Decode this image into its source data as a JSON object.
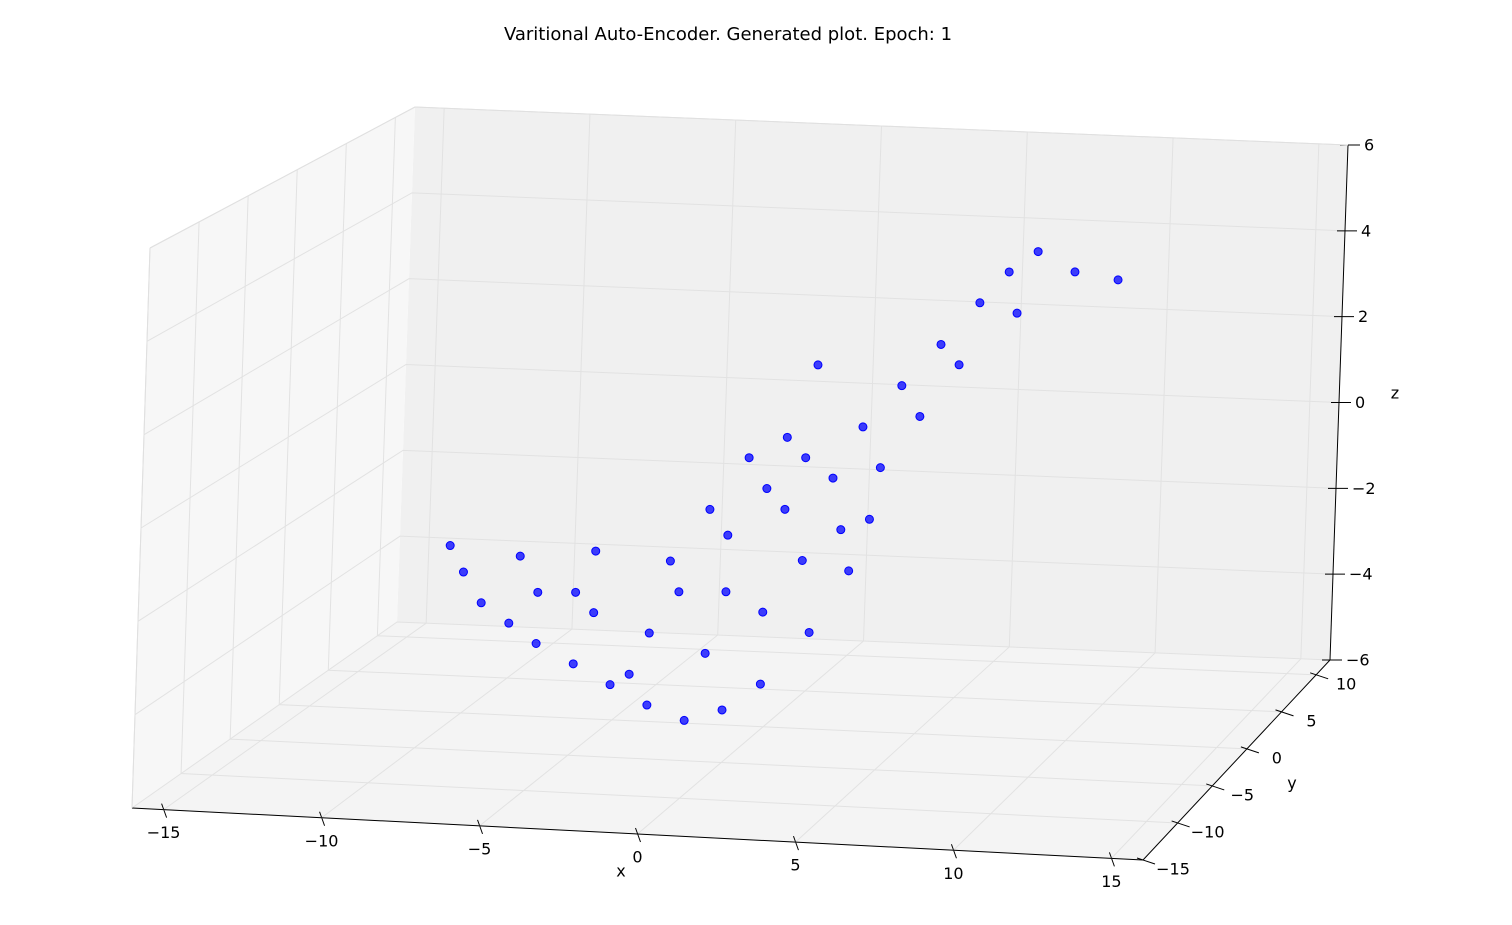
{
  "chart_data": {
    "type": "scatter3d",
    "title": "Varitional Auto-Encoder. Generated plot. Epoch: 1",
    "xlabel": "x",
    "ylabel": "y",
    "zlabel": "z",
    "color": "#0000ff",
    "grid": true,
    "xlim": [
      -16,
      16
    ],
    "ylim": [
      -15,
      12
    ],
    "zlim": [
      -6,
      6
    ],
    "xticks": [
      {
        "value": -15,
        "label": "−15"
      },
      {
        "value": -10,
        "label": "−10"
      },
      {
        "value": -5,
        "label": "−5"
      },
      0,
      5,
      10,
      15
    ],
    "yticks": [
      {
        "value": -15,
        "label": "−15"
      },
      {
        "value": -10,
        "label": "−10"
      },
      {
        "value": -5,
        "label": "−5"
      },
      0,
      5,
      10
    ],
    "zticks": [
      {
        "value": -6,
        "label": "−6"
      },
      {
        "value": -4,
        "label": "−4"
      },
      {
        "value": -2,
        "label": "−2"
      },
      0,
      2,
      4,
      6
    ],
    "x": [
      -9.05,
      -8.59,
      -7.98,
      -7.06,
      -6.15,
      -4.92,
      -3.7,
      -2.48,
      -1.25,
      -0.03,
      1.19,
      2.72,
      3.94,
      4.56,
      -6.76,
      -4.31,
      -1.87,
      -0.03,
      1.19,
      2.42,
      4.25,
      5.47,
      6.7,
      7.92,
      8.84,
      9.76,
      10.98,
      12.39,
      9.14,
      7.31,
      6.09,
      4.86,
      3.64,
      1.8,
      0.58,
      2.72,
      -4.31,
      -2.48,
      -0.64,
      1.19,
      -0.03,
      2.42,
      1.8,
      3.33,
      -1.56,
      -3.09,
      -6.15,
      -0.64,
      -4.92
    ],
    "y": [
      -5,
      -5,
      -5,
      -5,
      -5,
      -5,
      -5,
      -5,
      -5,
      -5,
      -5,
      -5,
      -5,
      -5,
      -5,
      -5,
      -5,
      -5,
      -5,
      -5,
      -5,
      -5,
      -5,
      -5,
      -5,
      -5,
      -5,
      -5,
      -5,
      -5,
      -5,
      -5,
      -5,
      -5,
      -5,
      -5,
      -5,
      -5,
      -5,
      -5,
      -5,
      -5,
      -5,
      -5,
      -5,
      -5,
      -5,
      -5,
      -5
    ],
    "z": [
      -1.5,
      -2.07,
      -2.73,
      -3.15,
      -3.57,
      -3.98,
      -4.4,
      -4.81,
      -5.11,
      -4.84,
      -4.23,
      -3.04,
      -1.64,
      -0.48,
      -1.66,
      -1.47,
      -1.61,
      -0.98,
      0.09,
      0.81,
      1.55,
      2.5,
      3.45,
      4.41,
      5.12,
      5.6,
      5.19,
      5.06,
      4.22,
      3.02,
      1.84,
      0.67,
      -0.74,
      1.24,
      0.75,
      2.87,
      -2.83,
      -3.22,
      -3.61,
      -2.64,
      -2.23,
      -1.46,
      -0.35,
      0.39,
      -2.28,
      -4.15,
      -2.44,
      -0.43,
      -2.4
    ]
  }
}
